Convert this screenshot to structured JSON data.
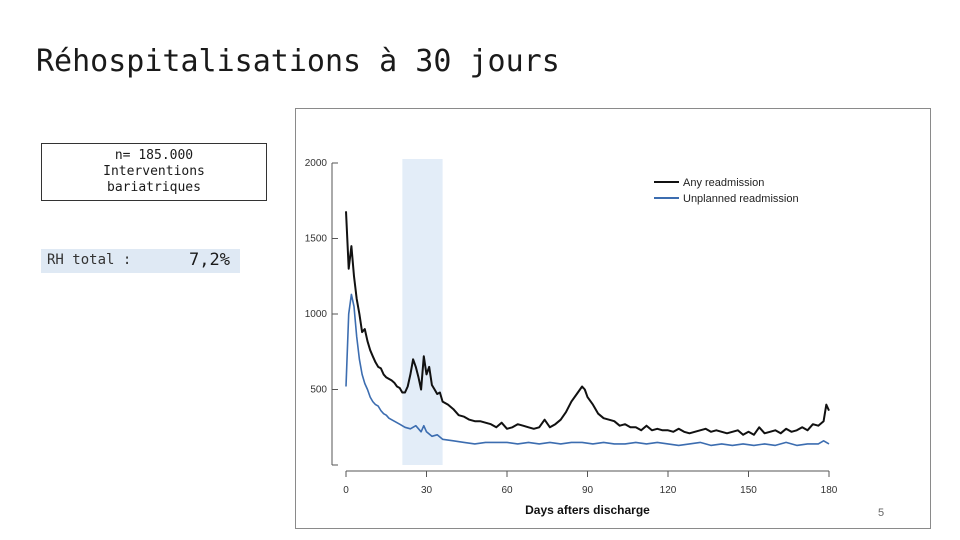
{
  "slide": {
    "title": "Réhospitalisations à 30 jours",
    "page_number": "5"
  },
  "info_box": {
    "line1": "n= 185.000",
    "line2": "Interventions",
    "line3": "bariatriques"
  },
  "rh_total": {
    "label": "RH total :",
    "value": "7,2%"
  },
  "chart_data": {
    "type": "line",
    "xlabel": "Days afters discharge",
    "ylabel": "",
    "xlim": [
      0,
      180
    ],
    "ylim": [
      0,
      2000
    ],
    "x_ticks": [
      0,
      30,
      60,
      90,
      120,
      150,
      180
    ],
    "y_ticks": [
      500,
      1000,
      1500,
      2000
    ],
    "highlight_band": [
      21,
      36
    ],
    "legend_position": "top-right",
    "grid": false,
    "series": [
      {
        "name": "Any readmission",
        "color": "#111111",
        "x": [
          0,
          1,
          2,
          3,
          4,
          5,
          6,
          7,
          8,
          9,
          10,
          11,
          12,
          13,
          14,
          15,
          16,
          17,
          18,
          19,
          20,
          21,
          22,
          23,
          24,
          25,
          26,
          27,
          28,
          29,
          30,
          31,
          32,
          33,
          34,
          35,
          36,
          38,
          40,
          42,
          44,
          46,
          48,
          50,
          52,
          54,
          56,
          58,
          60,
          62,
          64,
          66,
          68,
          70,
          72,
          74,
          76,
          78,
          80,
          82,
          84,
          86,
          88,
          89,
          90,
          92,
          94,
          96,
          98,
          100,
          102,
          104,
          106,
          108,
          110,
          112,
          114,
          116,
          118,
          120,
          122,
          124,
          126,
          128,
          130,
          132,
          134,
          136,
          138,
          140,
          142,
          144,
          146,
          148,
          150,
          152,
          154,
          156,
          158,
          160,
          162,
          164,
          166,
          168,
          170,
          172,
          174,
          176,
          178,
          179,
          180
        ],
        "values": [
          1680,
          1300,
          1450,
          1250,
          1100,
          1000,
          880,
          900,
          820,
          760,
          720,
          680,
          650,
          640,
          600,
          580,
          570,
          560,
          545,
          520,
          510,
          480,
          480,
          520,
          600,
          700,
          650,
          580,
          500,
          720,
          600,
          650,
          530,
          500,
          470,
          480,
          420,
          400,
          370,
          330,
          320,
          300,
          290,
          290,
          280,
          270,
          250,
          280,
          240,
          250,
          270,
          260,
          250,
          240,
          250,
          300,
          250,
          270,
          300,
          350,
          420,
          470,
          520,
          500,
          450,
          400,
          340,
          310,
          300,
          290,
          260,
          270,
          250,
          250,
          230,
          260,
          230,
          240,
          230,
          230,
          220,
          240,
          220,
          210,
          220,
          230,
          240,
          220,
          230,
          220,
          210,
          220,
          230,
          200,
          220,
          200,
          250,
          210,
          220,
          230,
          210,
          240,
          220,
          230,
          250,
          230,
          270,
          260,
          290,
          400,
          360
        ]
      },
      {
        "name": "Unplanned readmission",
        "color": "#3c6db0",
        "x": [
          0,
          1,
          2,
          3,
          4,
          5,
          6,
          7,
          8,
          9,
          10,
          11,
          12,
          13,
          14,
          15,
          16,
          17,
          18,
          19,
          20,
          22,
          24,
          26,
          28,
          29,
          30,
          32,
          34,
          36,
          40,
          44,
          48,
          52,
          56,
          60,
          64,
          68,
          72,
          76,
          80,
          84,
          88,
          92,
          96,
          100,
          104,
          108,
          112,
          116,
          120,
          124,
          128,
          132,
          136,
          140,
          144,
          148,
          152,
          156,
          160,
          164,
          168,
          172,
          176,
          178,
          180
        ],
        "values": [
          520,
          1000,
          1130,
          1050,
          850,
          700,
          600,
          540,
          500,
          450,
          420,
          400,
          390,
          360,
          340,
          330,
          310,
          300,
          290,
          280,
          270,
          250,
          240,
          260,
          220,
          260,
          220,
          190,
          200,
          170,
          160,
          150,
          140,
          150,
          150,
          150,
          140,
          150,
          140,
          150,
          140,
          150,
          150,
          140,
          150,
          140,
          140,
          150,
          140,
          150,
          140,
          130,
          140,
          150,
          130,
          140,
          130,
          140,
          130,
          140,
          130,
          150,
          130,
          140,
          140,
          160,
          140
        ]
      }
    ]
  }
}
